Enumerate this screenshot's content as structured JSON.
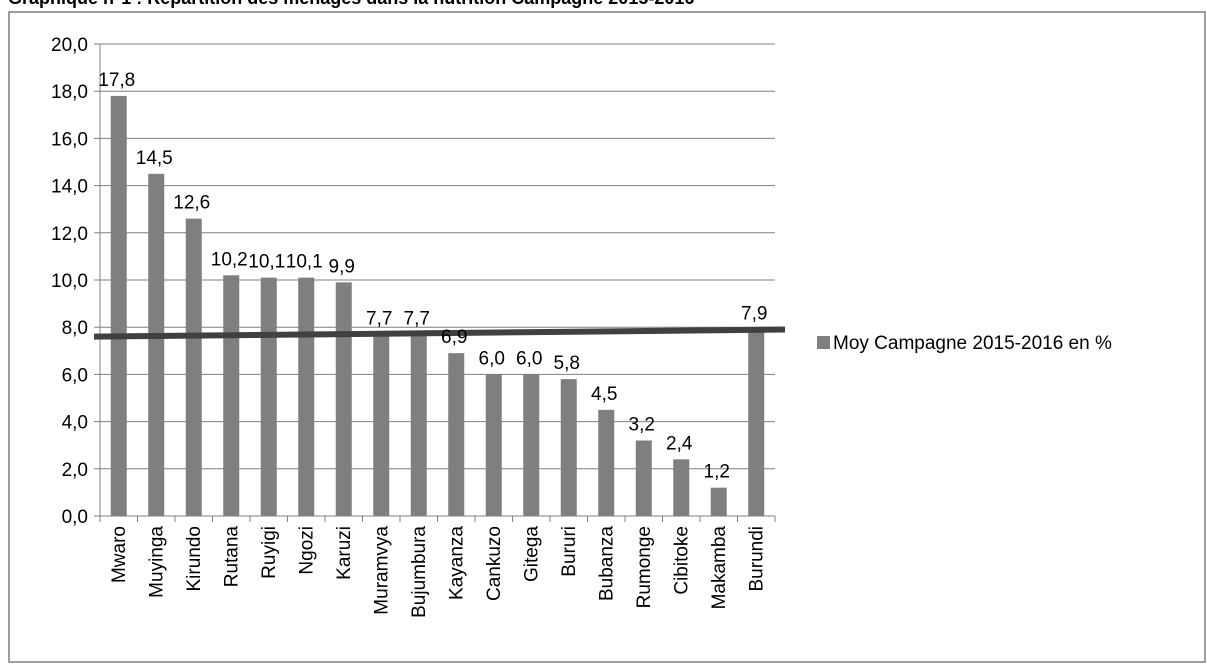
{
  "chart_data": {
    "type": "bar",
    "title": "Graphique n°1 : Répartition des ménages dans la nutrition Campagne 2015-2016",
    "xlabel": "",
    "ylabel": "",
    "ylim": [
      0,
      20
    ],
    "yticks": [
      "0,0",
      "2,0",
      "4,0",
      "6,0",
      "8,0",
      "10,0",
      "12,0",
      "14,0",
      "16,0",
      "18,0",
      "20,0"
    ],
    "grid": true,
    "legend_position": "right",
    "categories": [
      "Mwaro",
      "Muyinga",
      "Kirundo",
      "Rutana",
      "Ruyigi",
      "Ngozi",
      "Karuzi",
      "Muramvya",
      "Bujumbura",
      "Kayanza",
      "Cankuzo",
      "Gitega",
      "Bururi",
      "Bubanza",
      "Rumonge",
      "Cibitoke",
      "Makamba",
      "Burundi"
    ],
    "series": [
      {
        "name": "Moy Campagne  2015-2016 en %",
        "values": [
          17.8,
          14.5,
          12.6,
          10.2,
          10.1,
          10.1,
          9.9,
          7.7,
          7.7,
          6.9,
          6.0,
          6.0,
          5.8,
          4.5,
          3.2,
          2.4,
          1.2,
          7.9
        ],
        "labels": [
          "17,8",
          "14,5",
          "12,6",
          "10,2",
          "10,1",
          "10,1",
          "9,9",
          "7,7",
          "7,7",
          "6,9",
          "6,0",
          "6,0",
          "5,8",
          "4,5",
          "3,2",
          "2,4",
          "1,2",
          "7,9"
        ]
      }
    ],
    "trendline": {
      "start_value": 7.6,
      "end_value": 7.9
    },
    "colors": {
      "bar": "#7f7f7f",
      "trendline": "#404040",
      "grid": "#7f7f7f",
      "axis": "#7f7f7f",
      "border": "#7f7f7f"
    }
  }
}
